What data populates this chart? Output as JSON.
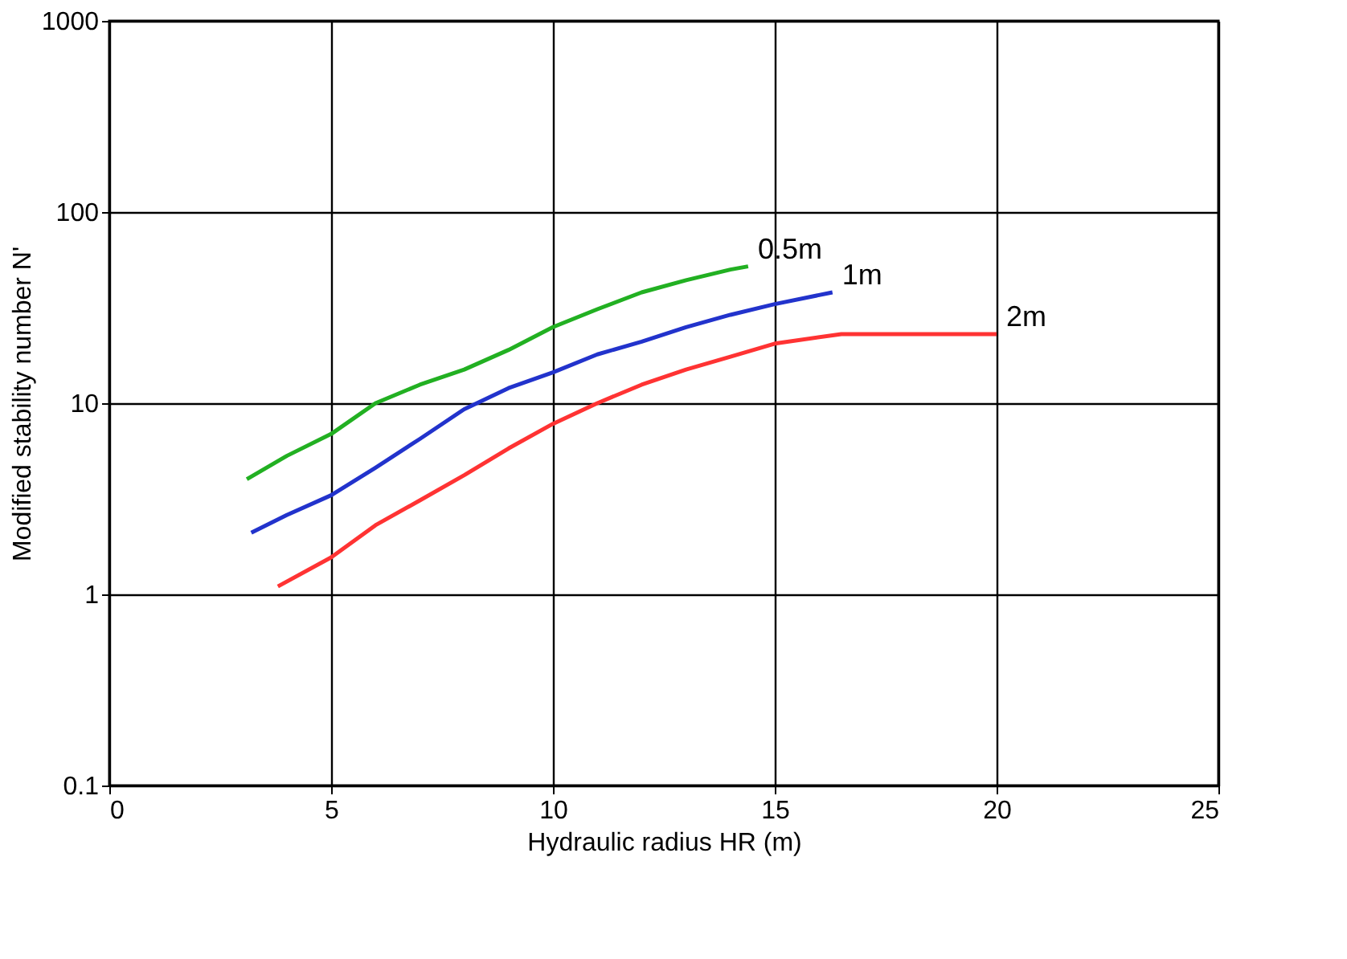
{
  "chart_data": {
    "type": "line",
    "xlabel": "Hydraulic radius HR (m)",
    "ylabel": "Modified stability number N'",
    "log": "y",
    "xlim": [
      0,
      25
    ],
    "xticks": [
      0,
      5,
      10,
      15,
      20,
      25
    ],
    "ylim": [
      0.1,
      1000
    ],
    "yticks": [
      0.1,
      1,
      10,
      100,
      1000
    ],
    "grid": true,
    "legend": false,
    "marker": "none",
    "line_style": "solid",
    "series": [
      {
        "name": "0.5m",
        "color": "#22b022",
        "x": [
          3.1,
          4,
          5,
          6,
          7,
          8,
          9,
          10,
          11,
          12,
          13,
          14,
          14.4
        ],
        "values": [
          4.0,
          5.3,
          6.9,
          10,
          12.5,
          15,
          19,
          25,
          31,
          38,
          44,
          50,
          52
        ]
      },
      {
        "name": "1m",
        "color": "#2233cc",
        "x": [
          3.2,
          4,
          5,
          6,
          7,
          8,
          9,
          10,
          11,
          12,
          13,
          14,
          15,
          16.3
        ],
        "values": [
          2.1,
          2.6,
          3.3,
          4.6,
          6.5,
          9.3,
          12,
          14.5,
          18,
          21,
          25,
          29,
          33,
          38
        ]
      },
      {
        "name": "2m",
        "color": "#ff3333",
        "x": [
          3.8,
          5,
          6,
          7,
          8,
          9,
          10,
          11,
          12,
          13,
          14,
          15,
          16.5,
          18,
          20
        ],
        "values": [
          1.1,
          1.56,
          2.3,
          3.1,
          4.2,
          5.8,
          7.8,
          10,
          12.5,
          15,
          17.5,
          20.5,
          23,
          23,
          23
        ]
      }
    ]
  }
}
